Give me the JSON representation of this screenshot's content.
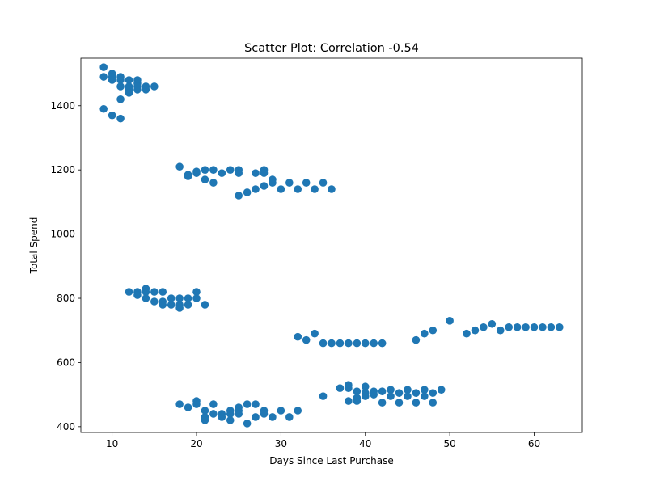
{
  "chart_data": {
    "type": "scatter",
    "title": "Scatter Plot: Correlation -0.54",
    "xlabel": "Days Since Last Purchase",
    "ylabel": "Total Spend",
    "xlim": [
      6.3,
      65.7
    ],
    "ylim": [
      382,
      1548
    ],
    "xticks": [
      10,
      20,
      30,
      40,
      50,
      60
    ],
    "yticks": [
      400,
      600,
      800,
      1000,
      1200,
      1400
    ],
    "grid": false,
    "marker_color": "#1f77b4",
    "points": [
      [
        9,
        1520
      ],
      [
        9,
        1490
      ],
      [
        10,
        1500
      ],
      [
        10,
        1490
      ],
      [
        10,
        1480
      ],
      [
        11,
        1490
      ],
      [
        11,
        1480
      ],
      [
        11,
        1460
      ],
      [
        12,
        1480
      ],
      [
        12,
        1460
      ],
      [
        12,
        1450
      ],
      [
        12,
        1440
      ],
      [
        13,
        1480
      ],
      [
        13,
        1470
      ],
      [
        13,
        1460
      ],
      [
        13,
        1450
      ],
      [
        14,
        1460
      ],
      [
        14,
        1450
      ],
      [
        15,
        1460
      ],
      [
        9,
        1390
      ],
      [
        10,
        1370
      ],
      [
        11,
        1360
      ],
      [
        11,
        1420
      ],
      [
        18,
        1210
      ],
      [
        19,
        1180
      ],
      [
        19,
        1185
      ],
      [
        20,
        1190
      ],
      [
        20,
        1195
      ],
      [
        21,
        1200
      ],
      [
        21,
        1170
      ],
      [
        22,
        1200
      ],
      [
        22,
        1160
      ],
      [
        23,
        1190
      ],
      [
        24,
        1200
      ],
      [
        25,
        1200
      ],
      [
        25,
        1190
      ],
      [
        25,
        1120
      ],
      [
        26,
        1130
      ],
      [
        27,
        1140
      ],
      [
        27,
        1190
      ],
      [
        28,
        1200
      ],
      [
        28,
        1190
      ],
      [
        28,
        1150
      ],
      [
        29,
        1170
      ],
      [
        29,
        1160
      ],
      [
        30,
        1140
      ],
      [
        31,
        1160
      ],
      [
        32,
        1140
      ],
      [
        33,
        1160
      ],
      [
        34,
        1140
      ],
      [
        35,
        1160
      ],
      [
        36,
        1140
      ],
      [
        12,
        820
      ],
      [
        13,
        820
      ],
      [
        13,
        810
      ],
      [
        14,
        830
      ],
      [
        14,
        820
      ],
      [
        14,
        800
      ],
      [
        15,
        820
      ],
      [
        15,
        790
      ],
      [
        16,
        820
      ],
      [
        16,
        790
      ],
      [
        16,
        780
      ],
      [
        17,
        800
      ],
      [
        17,
        780
      ],
      [
        18,
        800
      ],
      [
        18,
        780
      ],
      [
        18,
        770
      ],
      [
        19,
        800
      ],
      [
        19,
        780
      ],
      [
        20,
        820
      ],
      [
        20,
        800
      ],
      [
        21,
        780
      ],
      [
        32,
        680
      ],
      [
        33,
        670
      ],
      [
        34,
        690
      ],
      [
        35,
        660
      ],
      [
        36,
        660
      ],
      [
        37,
        660
      ],
      [
        38,
        660
      ],
      [
        39,
        660
      ],
      [
        40,
        660
      ],
      [
        41,
        660
      ],
      [
        42,
        660
      ],
      [
        46,
        670
      ],
      [
        47,
        690
      ],
      [
        48,
        700
      ],
      [
        50,
        730
      ],
      [
        52,
        690
      ],
      [
        53,
        700
      ],
      [
        54,
        710
      ],
      [
        55,
        720
      ],
      [
        56,
        700
      ],
      [
        57,
        710
      ],
      [
        58,
        710
      ],
      [
        59,
        710
      ],
      [
        60,
        710
      ],
      [
        61,
        710
      ],
      [
        62,
        710
      ],
      [
        63,
        710
      ],
      [
        18,
        470
      ],
      [
        19,
        460
      ],
      [
        20,
        470
      ],
      [
        20,
        480
      ],
      [
        21,
        420
      ],
      [
        21,
        430
      ],
      [
        21,
        450
      ],
      [
        22,
        470
      ],
      [
        22,
        440
      ],
      [
        23,
        440
      ],
      [
        23,
        430
      ],
      [
        24,
        450
      ],
      [
        24,
        440
      ],
      [
        24,
        420
      ],
      [
        25,
        460
      ],
      [
        25,
        450
      ],
      [
        25,
        440
      ],
      [
        26,
        410
      ],
      [
        26,
        470
      ],
      [
        27,
        470
      ],
      [
        27,
        430
      ],
      [
        28,
        450
      ],
      [
        28,
        440
      ],
      [
        29,
        430
      ],
      [
        30,
        450
      ],
      [
        31,
        430
      ],
      [
        32,
        450
      ],
      [
        35,
        495
      ],
      [
        37,
        520
      ],
      [
        38,
        530
      ],
      [
        38,
        520
      ],
      [
        38,
        480
      ],
      [
        39,
        510
      ],
      [
        39,
        490
      ],
      [
        39,
        480
      ],
      [
        40,
        525
      ],
      [
        40,
        505
      ],
      [
        40,
        495
      ],
      [
        41,
        510
      ],
      [
        41,
        500
      ],
      [
        42,
        510
      ],
      [
        42,
        475
      ],
      [
        43,
        515
      ],
      [
        43,
        495
      ],
      [
        44,
        505
      ],
      [
        44,
        475
      ],
      [
        45,
        515
      ],
      [
        45,
        495
      ],
      [
        46,
        505
      ],
      [
        46,
        475
      ],
      [
        47,
        515
      ],
      [
        47,
        495
      ],
      [
        48,
        505
      ],
      [
        48,
        475
      ],
      [
        49,
        515
      ]
    ]
  }
}
